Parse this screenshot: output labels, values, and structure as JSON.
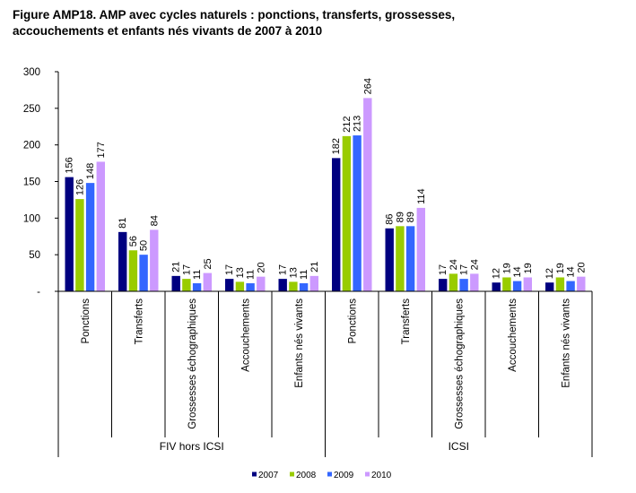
{
  "title_line1": "Figure AMP18. AMP avec cycles naturels : ponctions, transferts, grossesses,",
  "title_line2": "accouchements et enfants nés vivants de 2007 à 2010",
  "chart_data": {
    "type": "bar",
    "title": "Figure AMP18. AMP avec cycles naturels : ponctions, transferts, grossesses, accouchements et enfants nés vivants de 2007 à 2010",
    "xlabel": "",
    "ylabel": "",
    "ylim": [
      0,
      300
    ],
    "yticks": [
      0,
      50,
      100,
      150,
      200,
      250,
      300
    ],
    "ytick_labels": [
      "-",
      "50",
      "100",
      "150",
      "200",
      "250",
      "300"
    ],
    "grid": false,
    "legend_position": "bottom",
    "groups": [
      {
        "name": "FIV hors ICSI",
        "categories": [
          "Ponctions",
          "Transferts",
          "Grossesses échographiques",
          "Accouchements",
          "Enfants nés vivants"
        ]
      },
      {
        "name": "ICSI",
        "categories": [
          "Ponctions",
          "Transferts",
          "Grossesses échographiques",
          "Accouchements",
          "Enfants nés vivants"
        ]
      }
    ],
    "categories": [
      "Ponctions",
      "Transferts",
      "Grossesses échographiques",
      "Accouchements",
      "Enfants nés vivants",
      "Ponctions",
      "Transferts",
      "Grossesses échographiques",
      "Accouchements",
      "Enfants nés vivants"
    ],
    "series": [
      {
        "name": "2007",
        "color": "#000080",
        "values": [
          156,
          81,
          21,
          17,
          17,
          182,
          86,
          17,
          12,
          12
        ]
      },
      {
        "name": "2008",
        "color": "#99CC00",
        "values": [
          126,
          56,
          17,
          13,
          13,
          212,
          89,
          24,
          19,
          19
        ]
      },
      {
        "name": "2009",
        "color": "#3366FF",
        "values": [
          148,
          50,
          11,
          11,
          11,
          213,
          89,
          17,
          14,
          14
        ]
      },
      {
        "name": "2010",
        "color": "#CC99FF",
        "values": [
          177,
          84,
          25,
          20,
          21,
          264,
          114,
          24,
          19,
          20
        ]
      }
    ]
  }
}
